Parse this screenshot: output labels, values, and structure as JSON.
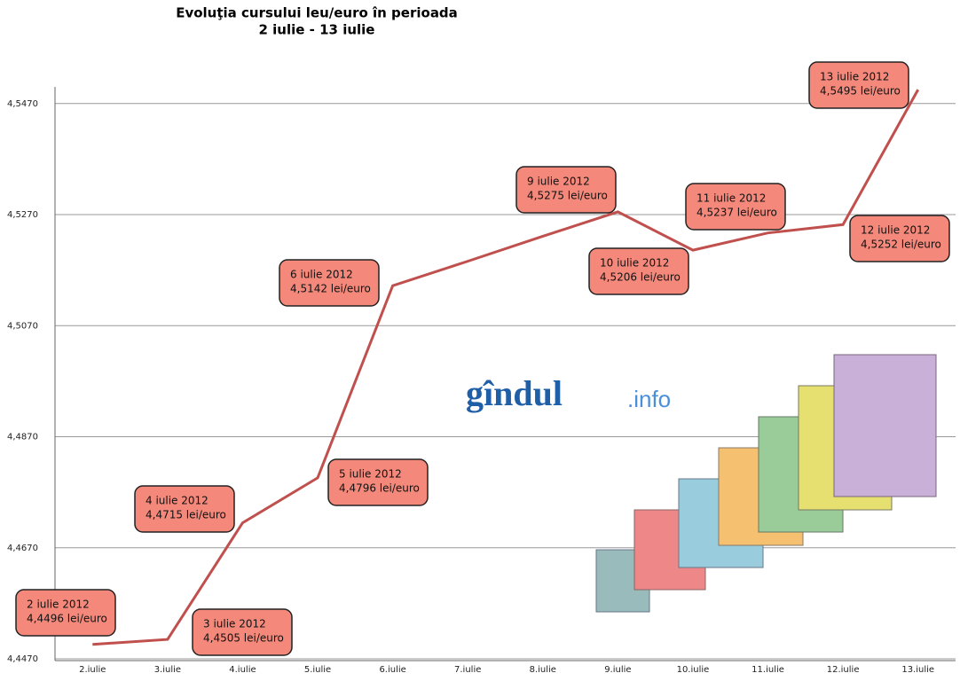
{
  "chart_data": {
    "type": "line",
    "title": [
      "Evoluţia cursului leu/euro în perioada",
      "2 iulie - 13 iulie"
    ],
    "categories": [
      "2.iulie",
      "3.iulie",
      "4.iulie",
      "5.iulie",
      "6.iulie",
      "7.iulie",
      "8.iulie",
      "9.iulie",
      "10.iulie",
      "11.iulie",
      "12.iulie",
      "13.iulie"
    ],
    "series": [
      {
        "name": "leu/euro",
        "color": "#c0504d",
        "values": [
          4.4496,
          4.4505,
          4.4715,
          4.4796,
          4.5142,
          4.5186,
          4.5231,
          4.5275,
          4.5206,
          4.5237,
          4.5252,
          4.5495
        ],
        "value_labels": [
          "4,4496 lei/euro",
          "4,4505 lei/euro",
          "4,4715 lei/euro",
          "4,4796 lei/euro",
          "4,5142 lei/euro",
          null,
          null,
          "4,5275 lei/euro",
          "4,5206 lei/euro",
          "4,5237 lei/euro",
          "4,5252 lei/euro",
          "4,5495 lei/euro"
        ],
        "annotation_dates": [
          "2 iulie 2012",
          "3 iulie 2012",
          "4 iulie 2012",
          "5 iulie 2012",
          "6 iulie 2012",
          null,
          null,
          "9 iulie 2012",
          "10 iulie 2012",
          "11 iulie 2012",
          "12 iulie 2012",
          "13 iulie 2012"
        ]
      }
    ],
    "ylim": [
      4.447,
      4.55
    ],
    "yticks": [
      {
        "value": 4.447,
        "label": "4,4470"
      },
      {
        "value": 4.467,
        "label": "4,4670"
      },
      {
        "value": 4.487,
        "label": "4,4870"
      },
      {
        "value": 4.507,
        "label": "4,5070"
      },
      {
        "value": 4.527,
        "label": "4,5270"
      },
      {
        "value": 4.547,
        "label": "4,5470"
      }
    ],
    "grid": true,
    "logo": {
      "name": "gîndul",
      "suffix": ".info"
    }
  }
}
